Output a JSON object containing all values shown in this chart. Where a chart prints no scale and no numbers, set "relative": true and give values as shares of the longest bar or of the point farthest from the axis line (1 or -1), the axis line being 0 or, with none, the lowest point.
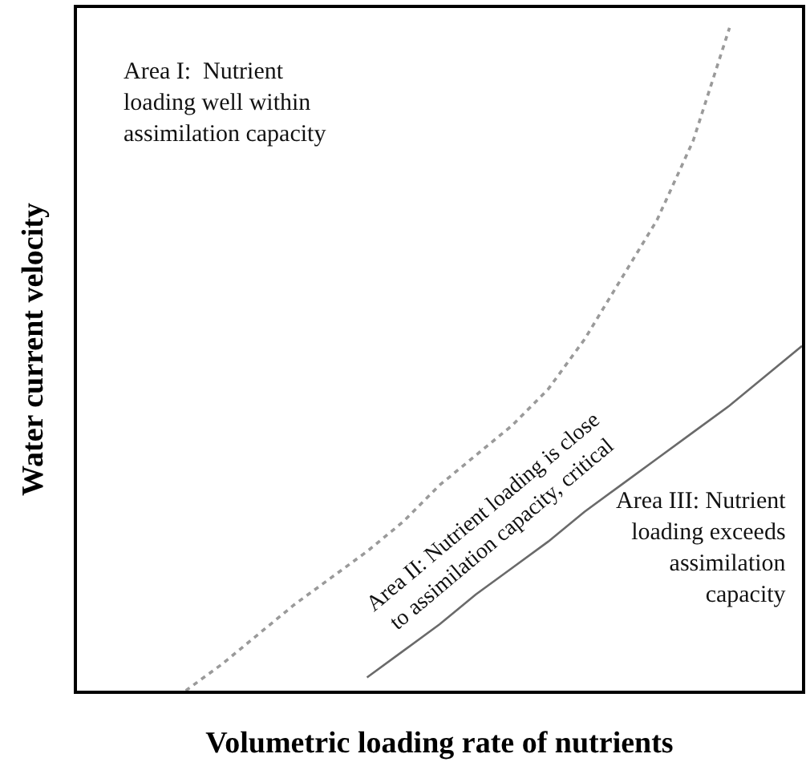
{
  "chart_data": {
    "type": "line",
    "relative": true,
    "xlabel": "Volumetric loading rate of nutrients",
    "ylabel": "Water current velocity",
    "marker": "none",
    "categories": [
      null,
      null,
      null,
      null,
      null,
      null,
      null,
      null,
      null,
      null,
      null,
      null,
      null,
      null,
      null,
      null,
      null,
      null,
      null,
      null,
      null
    ],
    "series": [
      {
        "color": "#9a9a9a",
        "line_style": "dotted",
        "values": [
          null,
          null,
          null,
          0,
          0.04,
          0.085,
          0.13,
          0.17,
          0.21,
          0.255,
          0.31,
          0.355,
          0.4,
          0.455,
          0.53,
          0.62,
          0.71,
          0.83,
          1.0,
          null,
          null
        ]
      },
      {
        "color": "#6a6a6a",
        "line_style": "solid",
        "values": [
          null,
          null,
          null,
          null,
          null,
          null,
          null,
          null,
          0.02,
          0.06,
          0.1,
          0.145,
          0.185,
          0.225,
          0.27,
          0.31,
          0.35,
          0.39,
          0.43,
          0.475,
          0.52
        ]
      }
    ],
    "annotations": [
      "Area I:  Nutrient\nloading well within\nassimilation capacity",
      "Area II: Nutrient loading is close\nto assimilation capacity, critical",
      "Area III: Nutrient\nloading exceeds\nassimilation\ncapacity"
    ]
  }
}
